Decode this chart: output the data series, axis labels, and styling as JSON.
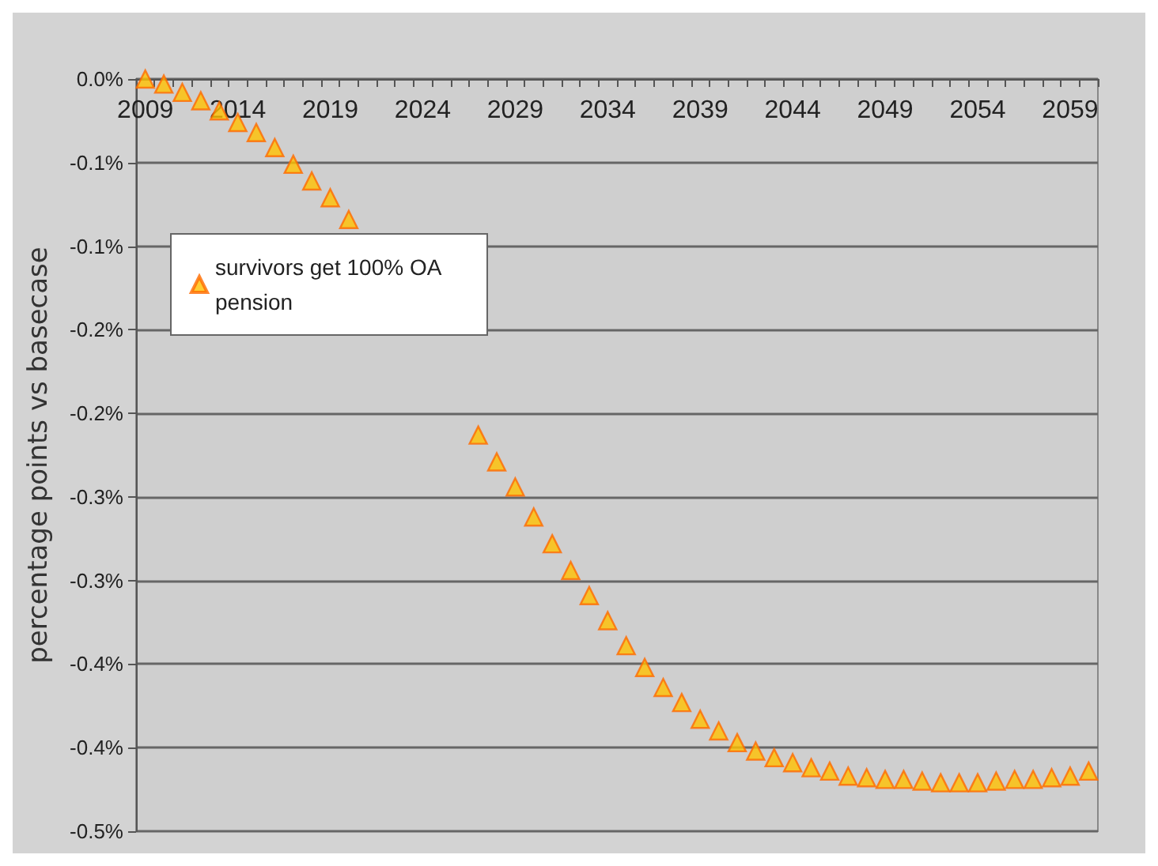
{
  "chart_data": {
    "type": "scatter",
    "ylabel": "percentage points vs basecase",
    "categories": [
      "2009",
      null,
      null,
      null,
      null,
      "2014",
      null,
      null,
      null,
      null,
      "2019",
      null,
      null,
      null,
      null,
      "2024",
      null,
      null,
      null,
      null,
      "2029",
      null,
      null,
      null,
      null,
      "2034",
      null,
      null,
      null,
      null,
      "2039",
      null,
      null,
      null,
      null,
      "2044",
      null,
      null,
      null,
      null,
      "2049",
      null,
      null,
      null,
      null,
      "2054",
      null,
      null,
      null,
      null,
      "2059",
      null
    ],
    "series": [
      {
        "name": "survivors get 100% OA pension",
        "color": "#ffc000",
        "values": [
          0,
          -0.003,
          -0.008,
          -0.013,
          -0.019,
          -0.026,
          -0.032,
          -0.041,
          -0.051,
          -0.061,
          -0.071,
          -0.084,
          null,
          null,
          null,
          null,
          null,
          null,
          -0.213,
          -0.229,
          -0.244,
          -0.262,
          -0.278,
          -0.294,
          -0.309,
          -0.324,
          -0.339,
          -0.352,
          -0.364,
          -0.373,
          -0.383,
          -0.39,
          -0.397,
          -0.402,
          -0.406,
          -0.409,
          -0.412,
          -0.414,
          -0.417,
          -0.418,
          -0.419,
          -0.419,
          -0.42,
          -0.421,
          -0.421,
          -0.421,
          -0.42,
          -0.419,
          -0.419,
          -0.418,
          -0.417,
          -0.414
        ]
      }
    ],
    "ylim": [
      -0.45,
      0
    ],
    "yticks": [
      {
        "value": 0,
        "label": "0.0%"
      },
      {
        "value": -0.05,
        "label": "-0.1%"
      },
      {
        "value": -0.1,
        "label": "-0.1%"
      },
      {
        "value": -0.15,
        "label": "-0.2%"
      },
      {
        "value": -0.2,
        "label": "-0.2%"
      },
      {
        "value": -0.25,
        "label": "-0.3%"
      },
      {
        "value": -0.3,
        "label": "-0.3%"
      },
      {
        "value": -0.35,
        "label": "-0.4%"
      },
      {
        "value": -0.4,
        "label": "-0.4%"
      },
      {
        "value": -0.45,
        "label": "-0.5%"
      }
    ],
    "grid": "y",
    "legend": "top left",
    "marker": "triangle"
  }
}
